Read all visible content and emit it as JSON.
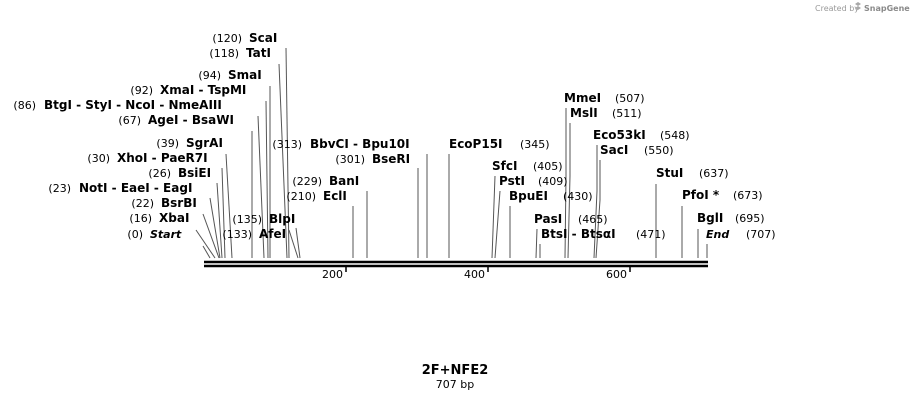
{
  "brand": {
    "prefix": "Created by",
    "name": "SnapGene"
  },
  "plasmid": {
    "name": "2F+NFE2",
    "length_label": "707 bp"
  },
  "axis": {
    "min": 0,
    "max": 707,
    "ticks": [
      "200",
      "400",
      "600"
    ]
  },
  "sites": [
    {
      "name": "Start",
      "pos": "(0)"
    },
    {
      "name": "XbaI",
      "pos": "(16)"
    },
    {
      "name": "BsrBI",
      "pos": "(22)"
    },
    {
      "name": "NotI - EaeI - EagI",
      "pos": "(23)"
    },
    {
      "name": "BsiEI",
      "pos": "(26)"
    },
    {
      "name": "XhoI - PaeR7I",
      "pos": "(30)"
    },
    {
      "name": "SgrAI",
      "pos": "(39)"
    },
    {
      "name": "AgeI - BsaWI",
      "pos": "(67)"
    },
    {
      "name": "BtgI - StyI - NcoI - NmeAIII",
      "pos": "(86)"
    },
    {
      "name": "XmaI - TspMI",
      "pos": "(92)"
    },
    {
      "name": "SmaI",
      "pos": "(94)"
    },
    {
      "name": "TatI",
      "pos": "(118)"
    },
    {
      "name": "ScaI",
      "pos": "(120)"
    },
    {
      "name": "AfeI",
      "pos": "(133)"
    },
    {
      "name": "BlpI",
      "pos": "(135)"
    },
    {
      "name": "EclI",
      "pos": "(210)"
    },
    {
      "name": "BanI",
      "pos": "(229)"
    },
    {
      "name": "BseRI",
      "pos": "(301)"
    },
    {
      "name": "BbvCI - Bpu10I",
      "pos": "(313)"
    },
    {
      "name": "EcoP15I",
      "pos": "(345)"
    },
    {
      "name": "SfcI",
      "pos": "(405)"
    },
    {
      "name": "PstI",
      "pos": "(409)"
    },
    {
      "name": "BpuEI",
      "pos": "(430)"
    },
    {
      "name": "PasI",
      "pos": "(465)"
    },
    {
      "name": "BtsI - BtsαI",
      "pos": "(471)"
    },
    {
      "name": "MmeI",
      "pos": "(507)"
    },
    {
      "name": "MslI",
      "pos": "(511)"
    },
    {
      "name": "Eco53kI",
      "pos": "(548)"
    },
    {
      "name": "SacI",
      "pos": "(550)"
    },
    {
      "name": "StuI",
      "pos": "(637)"
    },
    {
      "name": "PfoI *",
      "pos": "(673)"
    },
    {
      "name": "BglI",
      "pos": "(695)"
    },
    {
      "name": "End",
      "pos": "(707)"
    }
  ]
}
